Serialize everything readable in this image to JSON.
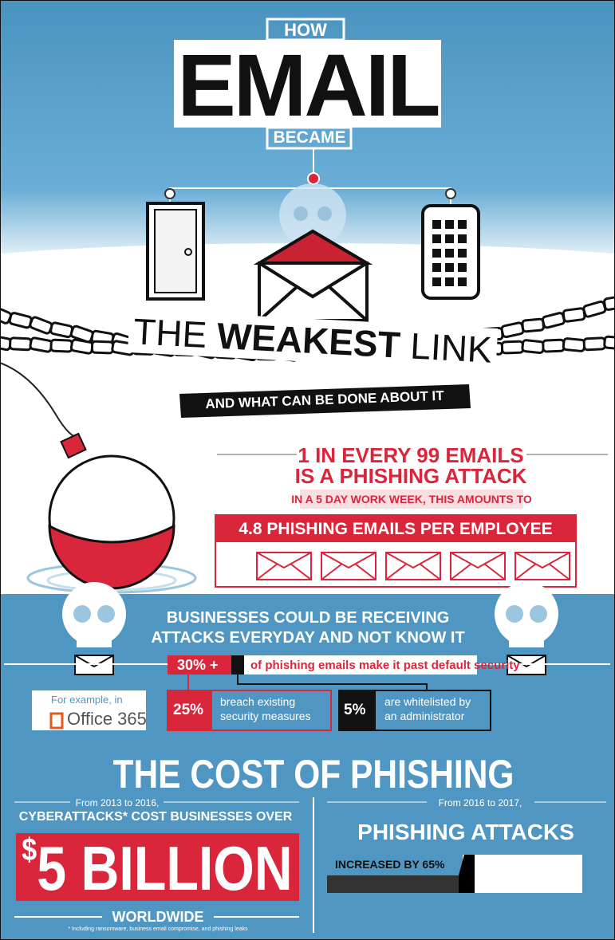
{
  "header": {
    "how": "HOW",
    "title": "EMAIL",
    "became": "BECAME"
  },
  "subtitle": {
    "parts": [
      "THE",
      "WEAKEST",
      "LINK"
    ],
    "tagline": "AND WHAT CAN BE DONE ABOUT IT"
  },
  "stat": {
    "lines": [
      "1 IN EVERY 99 EMAILS",
      "IS A PHISHING ATTACK"
    ],
    "note": "IN A 5 DAY WORK WEEK, THIS AMOUNTS TO",
    "box": "4.8 PHISHING EMAILS PER EMPLOYEE"
  },
  "businesses": {
    "heading": [
      "BUSINESSES COULD BE RECEIVING",
      "ATTACKS EVERYDAY AND NOT KNOW IT"
    ],
    "percent": "30% +",
    "percent_text": "of phishing emails make it past default security",
    "example": "For example, in",
    "brand": "Office 365",
    "breakdown": [
      {
        "value": "25%",
        "text": [
          "breach existing",
          "security measures"
        ]
      },
      {
        "value": "5%",
        "text": [
          "are whitelisted by",
          "an administrator"
        ]
      }
    ]
  },
  "cost": {
    "title": "THE COST OF PHISHING",
    "left": {
      "period": "From 2013 to 2016,",
      "label": "CYBERATTACKS* COST BUSINESSES OVER",
      "currency": "$",
      "amount": "5 BILLION",
      "region": "WORLDWIDE",
      "footnote": "* Including ransomware, business email compromise, and phishing leaks"
    },
    "right": {
      "period": "From 2016 to 2017,",
      "label": "PHISHING ATTACKS",
      "bar_label": "INCREASED BY 65%"
    }
  }
}
